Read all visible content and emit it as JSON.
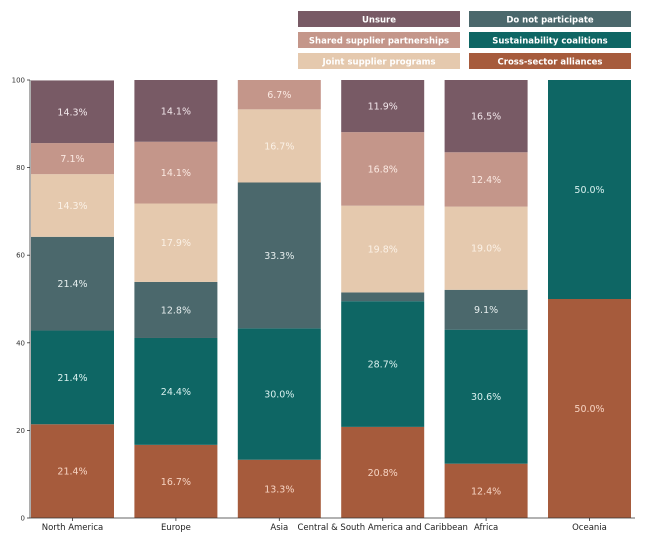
{
  "chart_data": {
    "type": "bar",
    "stacked": true,
    "title": "",
    "xlabel": "",
    "ylabel": "",
    "ylim": [
      0,
      100
    ],
    "yticks": [
      0,
      20,
      40,
      60,
      80,
      100
    ],
    "grid": false,
    "legend_placement": "top-right",
    "categories": [
      "North America",
      "Europe",
      "Asia",
      "Central & South America and Caribbean",
      "Africa",
      "Oceania"
    ],
    "series": [
      {
        "name": "Cross-sector alliances",
        "color": "#a65b3c",
        "label_color": "#f6d3c2",
        "values": [
          21.4,
          16.7,
          13.3,
          20.8,
          12.4,
          50.0
        ]
      },
      {
        "name": "Sustainability coalitions",
        "color": "#0e6664",
        "label_color": "#d8f0ee",
        "values": [
          21.4,
          24.4,
          30.0,
          28.7,
          30.6,
          50.0
        ]
      },
      {
        "name": "Do not participate",
        "color": "#4b686c",
        "label_color": "#e6eeee",
        "values": [
          21.4,
          12.8,
          33.3,
          2.0,
          9.1,
          0
        ]
      },
      {
        "name": "Joint supplier programs",
        "color": "#e5c9ae",
        "label_color": "#fbf1e6",
        "values": [
          14.3,
          17.9,
          16.7,
          19.8,
          19.0,
          0
        ]
      },
      {
        "name": "Shared supplier partnerships",
        "color": "#c4968a",
        "label_color": "#fbe9e2",
        "values": [
          7.1,
          14.1,
          6.7,
          16.8,
          12.4,
          0
        ]
      },
      {
        "name": "Unsure",
        "color": "#785a65",
        "label_color": "#f1e6ea",
        "values": [
          14.3,
          14.1,
          0,
          11.9,
          16.5,
          0
        ]
      }
    ],
    "data_labels_shown_above": 3,
    "legend_order": [
      "Unsure",
      "Do not participate",
      "Shared supplier partnerships",
      "Sustainability coalitions",
      "Joint supplier programs",
      "Cross-sector alliances"
    ]
  }
}
